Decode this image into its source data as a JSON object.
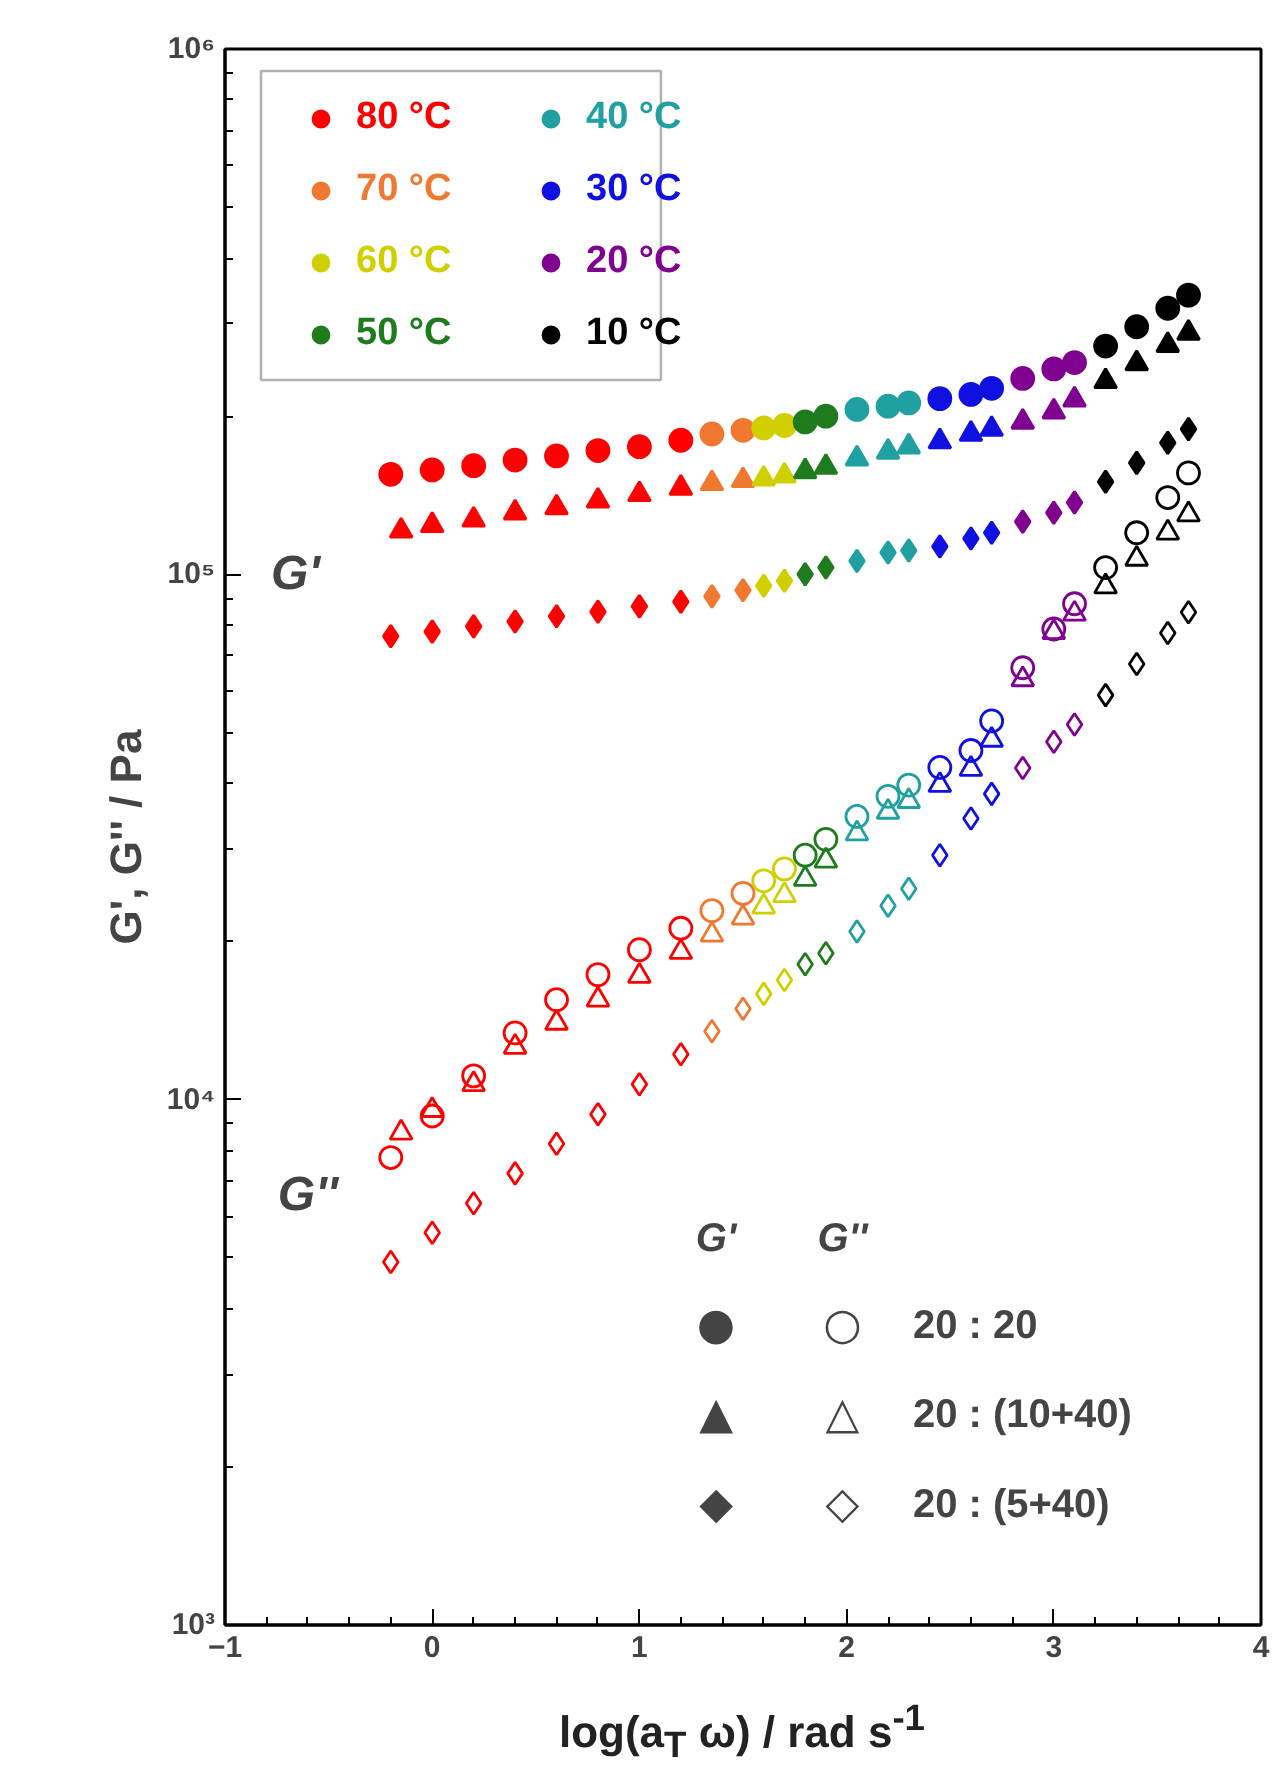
{
  "chart_data": {
    "type": "scatter",
    "xlabel": "log(a$_{T}$ ω) / rad s$^{-1}$",
    "ylabel": "G', G'' / Pa",
    "xlim": [
      -1,
      4
    ],
    "xticks": [
      -1,
      0,
      1,
      2,
      3,
      4
    ],
    "ylim": [
      1000,
      1000000
    ],
    "yticks": [
      {
        "value": 1000,
        "label": "10³"
      },
      {
        "value": 10000,
        "label": "10⁴"
      },
      {
        "value": 100000,
        "label": "10⁵"
      },
      {
        "value": 1000000,
        "label": "10⁶"
      }
    ],
    "log": "y",
    "grid": false,
    "legend": "top left",
    "annotations": [
      "G'",
      "G''",
      "G'",
      "G''",
      "●",
      "○",
      "20 : 20",
      "▲",
      "△",
      "20 : (10+40)",
      "◆",
      "◇",
      "20 : (5+40)"
    ],
    "series": [
      {
        "name": "80 °C",
        "color": "#ff0000",
        "marker": "circle",
        "x": [
          -0.2,
          0,
          0.2,
          0.4,
          0.6,
          0.8,
          1.0,
          1.2
        ],
        "values": [
          155000,
          158000,
          161000,
          165000,
          168000,
          172000,
          175000,
          180000
        ]
      },
      {
        "name": "70 °C",
        "color": "#f07830",
        "marker": "circle",
        "x": [
          1.35,
          1.5
        ],
        "values": [
          185000,
          188000
        ]
      },
      {
        "name": "60 °C",
        "color": "#d0d000",
        "marker": "circle",
        "x": [
          1.6,
          1.7
        ],
        "values": [
          190000,
          192000
        ]
      },
      {
        "name": "50 °C",
        "color": "#1e7b1e",
        "marker": "circle",
        "x": [
          1.8,
          1.9
        ],
        "values": [
          195000,
          200000
        ]
      },
      {
        "name": "40 °C",
        "color": "#20a0a0",
        "marker": "circle",
        "x": [
          2.05,
          2.2,
          2.3
        ],
        "values": [
          206000,
          209000,
          212000
        ]
      },
      {
        "name": "30 °C",
        "color": "#1010e0",
        "marker": "circle",
        "x": [
          2.45,
          2.6,
          2.7
        ],
        "values": [
          216000,
          220000,
          226000
        ]
      },
      {
        "name": "20 °C",
        "color": "#800090",
        "marker": "circle",
        "x": [
          2.85,
          3.0,
          3.1
        ],
        "values": [
          236000,
          246000,
          253000
        ]
      },
      {
        "name": "10 °C",
        "color": "#000000",
        "marker": "circle",
        "x": [
          3.25,
          3.4,
          3.55,
          3.65
        ],
        "values": [
          272000,
          296000,
          321000,
          340000
        ]
      },
      {
        "color": "#ff0000",
        "marker": "triangle",
        "x": [
          -0.15,
          0,
          0.2,
          0.4,
          0.6,
          0.8,
          1.0,
          1.2
        ],
        "values": [
          121000,
          124000,
          127000,
          131000,
          134000,
          138000,
          142000,
          146000
        ]
      },
      {
        "color": "#f07830",
        "marker": "triangle",
        "x": [
          1.35,
          1.5
        ],
        "values": [
          149000,
          151000
        ]
      },
      {
        "color": "#d0d000",
        "marker": "triangle",
        "x": [
          1.6,
          1.7
        ],
        "values": [
          152000,
          154000
        ]
      },
      {
        "color": "#1e7b1e",
        "marker": "triangle",
        "x": [
          1.8,
          1.9
        ],
        "values": [
          157000,
          160000
        ]
      },
      {
        "color": "#20a0a0",
        "marker": "triangle",
        "x": [
          2.05,
          2.2,
          2.3
        ],
        "values": [
          166000,
          171000,
          175000
        ]
      },
      {
        "color": "#1010e0",
        "marker": "triangle",
        "x": [
          2.45,
          2.6,
          2.7
        ],
        "values": [
          179000,
          185000,
          189000
        ]
      },
      {
        "color": "#800090",
        "marker": "triangle",
        "x": [
          2.85,
          3.0,
          3.1
        ],
        "values": [
          195000,
          204000,
          215000
        ]
      },
      {
        "color": "#000000",
        "marker": "triangle",
        "x": [
          3.25,
          3.4,
          3.55,
          3.65
        ],
        "values": [
          233000,
          252000,
          273000,
          288000
        ]
      },
      {
        "color": "#ff0000",
        "marker": "diamond",
        "x": [
          -0.2,
          0,
          0.2,
          0.4,
          0.6,
          0.8,
          1.0,
          1.2
        ],
        "values": [
          76200,
          77800,
          79600,
          81300,
          83200,
          84900,
          86900,
          88700
        ]
      },
      {
        "color": "#f07830",
        "marker": "diamond",
        "x": [
          1.35,
          1.5
        ],
        "values": [
          90800,
          93300
        ]
      },
      {
        "color": "#d0d000",
        "marker": "diamond",
        "x": [
          1.6,
          1.7
        ],
        "values": [
          95100,
          97200
        ]
      },
      {
        "color": "#1e7b1e",
        "marker": "diamond",
        "x": [
          1.8,
          1.9
        ],
        "values": [
          100000,
          103000
        ]
      },
      {
        "color": "#20a0a0",
        "marker": "diamond",
        "x": [
          2.05,
          2.2,
          2.3
        ],
        "values": [
          106000,
          110000,
          111000
        ]
      },
      {
        "color": "#1010e0",
        "marker": "diamond",
        "x": [
          2.45,
          2.6,
          2.7
        ],
        "values": [
          113000,
          117000,
          120000
        ]
      },
      {
        "color": "#800090",
        "marker": "diamond",
        "x": [
          2.85,
          3.0,
          3.1
        ],
        "values": [
          126000,
          131000,
          137000
        ]
      },
      {
        "color": "#000000",
        "marker": "diamond",
        "x": [
          3.25,
          3.4,
          3.55,
          3.65
        ],
        "values": [
          150000,
          163000,
          178000,
          189000
        ]
      },
      {
        "color": "#ff0000",
        "marker": "circle_open",
        "x": [
          -0.2,
          0,
          0.2,
          0.4,
          0.6,
          0.8,
          1.0,
          1.2
        ],
        "values": [
          7760,
          9310,
          11100,
          13400,
          15500,
          17300,
          19300,
          21200
        ]
      },
      {
        "color": "#f07830",
        "marker": "circle_open",
        "x": [
          1.35,
          1.5
        ],
        "values": [
          22900,
          24700
        ]
      },
      {
        "color": "#d0d000",
        "marker": "circle_open",
        "x": [
          1.6,
          1.7
        ],
        "values": [
          26100,
          27500
        ]
      },
      {
        "color": "#1e7b1e",
        "marker": "circle_open",
        "x": [
          1.8,
          1.9
        ],
        "values": [
          29200,
          31300
        ]
      },
      {
        "color": "#20a0a0",
        "marker": "circle_open",
        "x": [
          2.05,
          2.2,
          2.3
        ],
        "values": [
          34600,
          37800,
          39700
        ]
      },
      {
        "color": "#1010e0",
        "marker": "circle_open",
        "x": [
          2.45,
          2.6,
          2.7
        ],
        "values": [
          42900,
          46200,
          52600
        ]
      },
      {
        "color": "#800090",
        "marker": "circle_open",
        "x": [
          2.85,
          3.0,
          3.1
        ],
        "values": [
          66400,
          78700,
          87900
        ]
      },
      {
        "color": "#000000",
        "marker": "circle_open",
        "x": [
          3.25,
          3.4,
          3.55,
          3.65
        ],
        "values": [
          103000,
          120000,
          140000,
          156000
        ]
      },
      {
        "color": "#ff0000",
        "marker": "triangle_open",
        "x": [
          -0.15,
          0,
          0.2,
          0.4,
          0.6,
          0.8,
          1.0,
          1.2
        ],
        "values": [
          8650,
          9550,
          10700,
          12600,
          14000,
          15500,
          17200,
          19100
        ]
      },
      {
        "color": "#f07830",
        "marker": "triangle_open",
        "x": [
          1.35,
          1.5
        ],
        "values": [
          20600,
          22200
        ]
      },
      {
        "color": "#d0d000",
        "marker": "triangle_open",
        "x": [
          1.6,
          1.7
        ],
        "values": [
          23300,
          24500
        ]
      },
      {
        "color": "#1e7b1e",
        "marker": "triangle_open",
        "x": [
          1.8,
          1.9
        ],
        "values": [
          26300,
          28500
        ]
      },
      {
        "color": "#20a0a0",
        "marker": "triangle_open",
        "x": [
          2.05,
          2.2,
          2.3
        ],
        "values": [
          32100,
          35300,
          37000
        ]
      },
      {
        "color": "#1010e0",
        "marker": "triangle_open",
        "x": [
          2.45,
          2.6,
          2.7
        ],
        "values": [
          39700,
          42600,
          48400
        ]
      },
      {
        "color": "#800090",
        "marker": "triangle_open",
        "x": [
          2.85,
          3.0,
          3.1
        ],
        "values": [
          63100,
          77600,
          84100
        ]
      },
      {
        "color": "#000000",
        "marker": "triangle_open",
        "x": [
          3.25,
          3.4,
          3.55,
          3.65
        ],
        "values": [
          94800,
          107000,
          120000,
          130000
        ]
      },
      {
        "color": "#ff0000",
        "marker": "diamond_open",
        "x": [
          -0.2,
          0,
          0.2,
          0.4,
          0.6,
          0.8,
          1.0,
          1.2
        ],
        "values": [
          4910,
          5580,
          6350,
          7240,
          8240,
          9380,
          10700,
          12200
        ]
      },
      {
        "color": "#f07830",
        "marker": "diamond_open",
        "x": [
          1.35,
          1.5
        ],
        "values": [
          13500,
          14900
        ]
      },
      {
        "color": "#d0d000",
        "marker": "diamond_open",
        "x": [
          1.6,
          1.7
        ],
        "values": [
          15900,
          16900
        ]
      },
      {
        "color": "#1e7b1e",
        "marker": "diamond_open",
        "x": [
          1.8,
          1.9
        ],
        "values": [
          18100,
          19000
        ]
      },
      {
        "color": "#20a0a0",
        "marker": "diamond_open",
        "x": [
          2.05,
          2.2,
          2.3
        ],
        "values": [
          20900,
          23400,
          25200
        ]
      },
      {
        "color": "#1010e0",
        "marker": "diamond_open",
        "x": [
          2.45,
          2.6,
          2.7
        ],
        "values": [
          29200,
          34300,
          38200
        ]
      },
      {
        "color": "#800090",
        "marker": "diamond_open",
        "x": [
          2.85,
          3.0,
          3.1
        ],
        "values": [
          42800,
          48000,
          51800
        ]
      },
      {
        "color": "#000000",
        "marker": "diamond_open",
        "x": [
          3.25,
          3.4,
          3.55,
          3.65
        ],
        "values": [
          58900,
          67500,
          77300,
          84700
        ]
      }
    ]
  }
}
